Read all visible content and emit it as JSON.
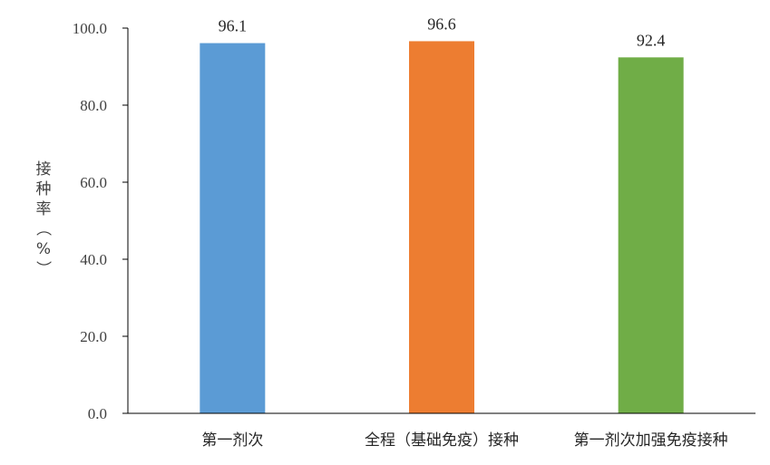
{
  "chart_data": {
    "type": "bar",
    "categories": [
      "第一剂次",
      "全程（基础免疫）接种",
      "第一剂次加强免疫接种"
    ],
    "values": [
      96.1,
      96.6,
      92.4
    ],
    "value_labels": [
      "96.1",
      "96.6",
      "92.4"
    ],
    "colors": [
      "#5B9BD5",
      "#ED7D31",
      "#70AD47"
    ],
    "ylabel": "接种率（%）",
    "ylim": [
      0,
      100
    ],
    "yticks": [
      "0.0",
      "20.0",
      "40.0",
      "60.0",
      "80.0",
      "100.0"
    ],
    "grid": false,
    "legend": "none"
  }
}
